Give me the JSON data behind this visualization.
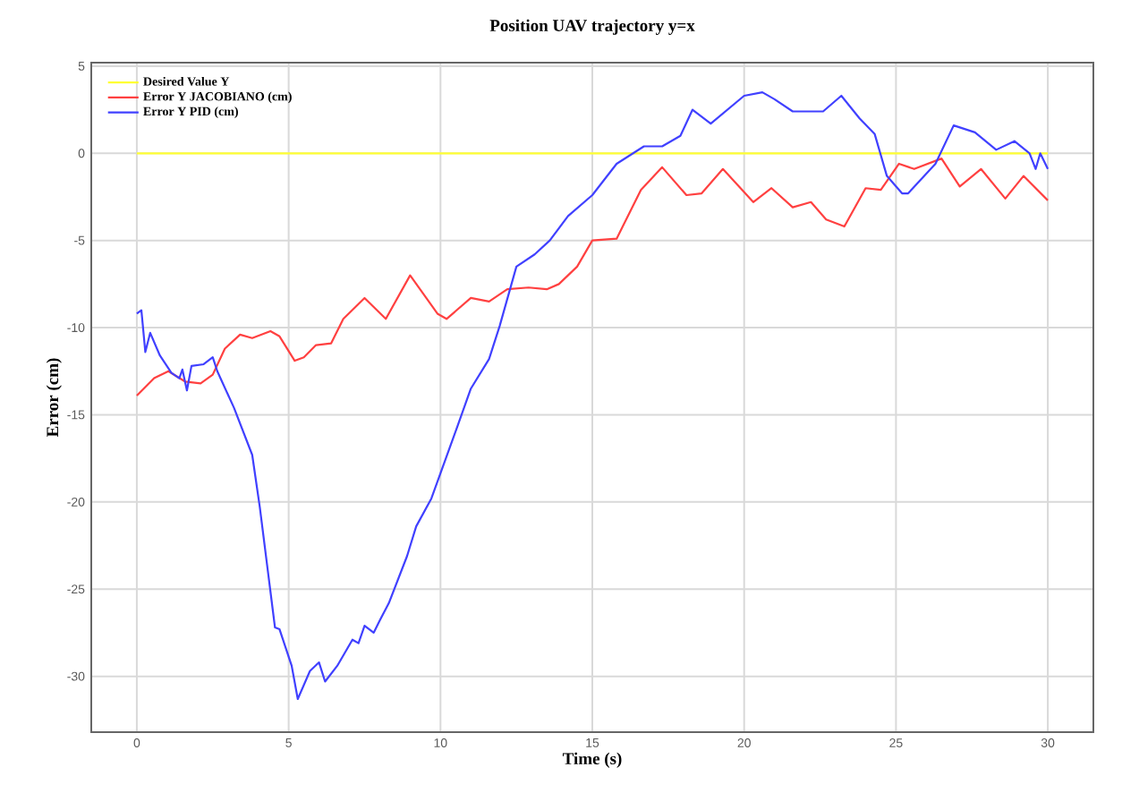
{
  "chart_data": {
    "type": "line",
    "title": "Position UAV trajectory y=x",
    "xlabel": "Time (s)",
    "ylabel": "Error (cm)",
    "xlim": [
      -1.5,
      31.5
    ],
    "ylim": [
      -33.2,
      5.2
    ],
    "xticks": [
      0,
      5,
      10,
      15,
      20,
      25,
      30
    ],
    "yticks": [
      5,
      0,
      -5,
      -10,
      -15,
      -20,
      -25,
      -30
    ],
    "grid": true,
    "legend": "top left",
    "line_style": "solid",
    "marker": "none",
    "series": [
      {
        "name": "Desired Value Y",
        "color": "#ffff33",
        "x": [
          0,
          30
        ],
        "values": [
          0,
          0
        ]
      },
      {
        "name": "Error Y JACOBIANO (cm)",
        "color": "#ff4040",
        "x": [
          0,
          0.57,
          1.04,
          1.6,
          2.1,
          2.5,
          2.9,
          3.4,
          3.8,
          4.4,
          4.7,
          5.2,
          5.5,
          5.9,
          6.4,
          6.8,
          7.5,
          8.2,
          9.0,
          9.9,
          10.2,
          11.0,
          11.6,
          12.2,
          12.9,
          13.5,
          13.9,
          14.5,
          15.0,
          15.8,
          16.6,
          17.3,
          18.1,
          18.6,
          19.3,
          20.3,
          20.9,
          21.6,
          22.2,
          22.7,
          23.3,
          24.0,
          24.5,
          25.1,
          25.6,
          26.5,
          27.1,
          27.8,
          28.6,
          29.2,
          30.0
        ],
        "values": [
          -13.9,
          -12.9,
          -12.5,
          -13.1,
          -13.2,
          -12.7,
          -11.2,
          -10.4,
          -10.6,
          -10.2,
          -10.5,
          -11.9,
          -11.7,
          -11.0,
          -10.9,
          -9.5,
          -8.3,
          -9.5,
          -7.0,
          -9.2,
          -9.5,
          -8.3,
          -8.5,
          -7.8,
          -7.7,
          -7.8,
          -7.5,
          -6.5,
          -5.0,
          -4.9,
          -2.1,
          -0.8,
          -2.4,
          -2.3,
          -0.9,
          -2.8,
          -2.0,
          -3.1,
          -2.8,
          -3.8,
          -4.2,
          -2.0,
          -2.1,
          -0.6,
          -0.9,
          -0.3,
          -1.9,
          -0.9,
          -2.6,
          -1.3,
          -2.7
        ]
      },
      {
        "name": "Error Y PID (cm)",
        "color": "#4040ff",
        "x": [
          0,
          0.15,
          0.28,
          0.44,
          0.76,
          1.14,
          1.4,
          1.5,
          1.65,
          1.8,
          2.2,
          2.5,
          2.65,
          3.2,
          3.8,
          4.05,
          4.55,
          4.7,
          5.1,
          5.3,
          5.7,
          6.0,
          6.2,
          6.6,
          7.1,
          7.3,
          7.5,
          7.8,
          8.0,
          8.3,
          8.9,
          9.2,
          9.7,
          10.55,
          11.0,
          11.6,
          11.95,
          12.5,
          13.1,
          13.6,
          14.2,
          15.0,
          15.8,
          16.7,
          17.3,
          17.9,
          18.3,
          18.9,
          20.0,
          20.6,
          21.0,
          21.6,
          22.6,
          23.2,
          23.8,
          24.3,
          24.7,
          25.2,
          25.4,
          26.3,
          26.9,
          27.6,
          28.3,
          28.9,
          29.4,
          29.6,
          29.75,
          30.0
        ],
        "values": [
          -9.2,
          -9.0,
          -11.4,
          -10.3,
          -11.6,
          -12.6,
          -12.9,
          -12.4,
          -13.6,
          -12.2,
          -12.1,
          -11.7,
          -12.5,
          -14.6,
          -17.3,
          -20.3,
          -27.2,
          -27.3,
          -29.4,
          -31.3,
          -29.7,
          -29.2,
          -30.3,
          -29.4,
          -27.9,
          -28.1,
          -27.1,
          -27.5,
          -26.8,
          -25.8,
          -23.1,
          -21.4,
          -19.8,
          -15.7,
          -13.5,
          -11.8,
          -9.9,
          -6.5,
          -5.8,
          -5.0,
          -3.6,
          -2.4,
          -0.6,
          0.4,
          0.4,
          1.0,
          2.5,
          1.7,
          3.3,
          3.5,
          3.1,
          2.4,
          2.4,
          3.3,
          2.0,
          1.1,
          -1.3,
          -2.3,
          -2.3,
          -0.6,
          1.6,
          1.2,
          0.2,
          0.7,
          0.0,
          -0.9,
          0.0,
          -0.9
        ]
      }
    ]
  }
}
